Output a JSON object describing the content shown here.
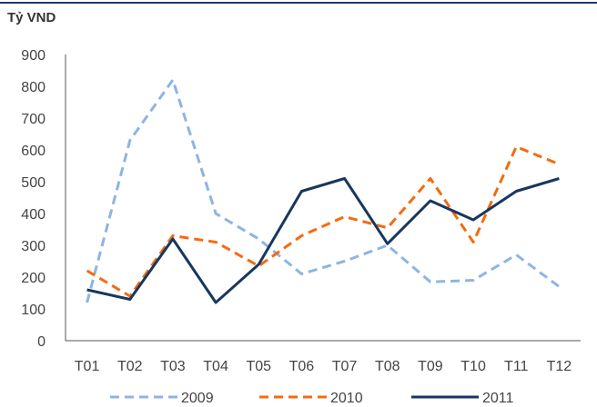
{
  "chart_data": {
    "type": "line",
    "ylabel": "Tỷ VND",
    "categories": [
      "T01",
      "T02",
      "T03",
      "T04",
      "T05",
      "T06",
      "T07",
      "T08",
      "T09",
      "T10",
      "T11",
      "T12"
    ],
    "y_ticks": [
      "0",
      "100",
      "200",
      "300",
      "400",
      "500",
      "600",
      "700",
      "800",
      "900"
    ],
    "ylim": [
      0,
      900
    ],
    "grid": false,
    "legend_position": "bottom",
    "series": [
      {
        "name": "2009",
        "color": "#8eb4e3",
        "dash": "dashed",
        "values": [
          120,
          630,
          820,
          400,
          320,
          210,
          250,
          300,
          185,
          190,
          270,
          170
        ]
      },
      {
        "name": "2010",
        "color": "#f36b12",
        "dash": "dashed",
        "values": [
          220,
          140,
          330,
          310,
          235,
          330,
          390,
          355,
          510,
          310,
          610,
          555
        ]
      },
      {
        "name": "2011",
        "color": "#17375e",
        "dash": "solid",
        "values": [
          160,
          130,
          320,
          120,
          240,
          470,
          510,
          305,
          440,
          380,
          470,
          510
        ]
      }
    ]
  }
}
